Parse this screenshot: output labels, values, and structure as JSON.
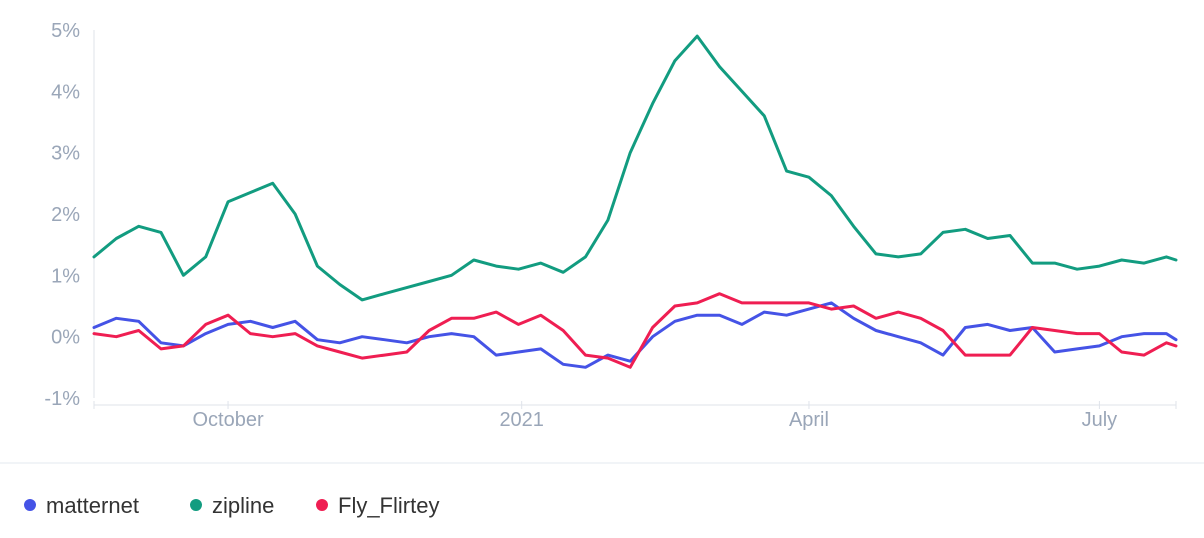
{
  "chart_data": {
    "type": "line",
    "title": "",
    "xlabel": "",
    "ylabel": "",
    "x_range": [
      "2020-08-20",
      "2021-07-25"
    ],
    "ylim": [
      -1,
      5
    ],
    "y_ticks": [
      5,
      4,
      3,
      2,
      1,
      0,
      -1
    ],
    "y_tick_labels": [
      "5%",
      "4%",
      "3%",
      "2%",
      "1%",
      "0%",
      "-1%"
    ],
    "x_ticks": [
      "2020-10-01",
      "2021-01-01",
      "2021-04-01",
      "2021-07-01"
    ],
    "x_tick_labels": [
      "October",
      "2021",
      "April",
      "July"
    ],
    "grid": false,
    "legend_position": "bottom-left",
    "x": [
      "2020-08-20",
      "2020-08-27",
      "2020-09-03",
      "2020-09-10",
      "2020-09-17",
      "2020-09-24",
      "2020-10-01",
      "2020-10-08",
      "2020-10-15",
      "2020-10-22",
      "2020-10-29",
      "2020-11-05",
      "2020-11-12",
      "2020-11-19",
      "2020-11-26",
      "2020-12-03",
      "2020-12-10",
      "2020-12-17",
      "2020-12-24",
      "2020-12-31",
      "2021-01-07",
      "2021-01-14",
      "2021-01-21",
      "2021-01-28",
      "2021-02-04",
      "2021-02-11",
      "2021-02-18",
      "2021-02-25",
      "2021-03-04",
      "2021-03-11",
      "2021-03-18",
      "2021-03-25",
      "2021-04-01",
      "2021-04-08",
      "2021-04-15",
      "2021-04-22",
      "2021-04-29",
      "2021-05-06",
      "2021-05-13",
      "2021-05-20",
      "2021-05-27",
      "2021-06-03",
      "2021-06-10",
      "2021-06-17",
      "2021-06-24",
      "2021-07-01",
      "2021-07-08",
      "2021-07-15",
      "2021-07-22",
      "2021-07-25"
    ],
    "series": [
      {
        "name": "matternet",
        "color": "#4553e6",
        "values": [
          0.15,
          0.3,
          0.25,
          -0.1,
          -0.15,
          0.05,
          0.2,
          0.25,
          0.15,
          0.25,
          -0.05,
          -0.1,
          0.0,
          -0.05,
          -0.1,
          0.0,
          0.05,
          0.0,
          -0.3,
          -0.25,
          -0.2,
          -0.45,
          -0.5,
          -0.3,
          -0.4,
          0.0,
          0.25,
          0.35,
          0.35,
          0.2,
          0.4,
          0.35,
          0.45,
          0.55,
          0.3,
          0.1,
          0.0,
          -0.1,
          -0.3,
          0.15,
          0.2,
          0.1,
          0.15,
          -0.25,
          -0.2,
          -0.15,
          0.0,
          0.05,
          0.05,
          -0.05
        ]
      },
      {
        "name": "zipline",
        "color": "#129c80",
        "values": [
          1.3,
          1.6,
          1.8,
          1.7,
          1.0,
          1.3,
          2.2,
          2.35,
          2.5,
          2.0,
          1.15,
          0.85,
          0.6,
          0.7,
          0.8,
          0.9,
          1.0,
          1.25,
          1.15,
          1.1,
          1.2,
          1.05,
          1.3,
          1.9,
          3.0,
          3.8,
          4.5,
          4.9,
          4.4,
          4.0,
          3.6,
          2.7,
          2.6,
          2.3,
          1.8,
          1.35,
          1.3,
          1.35,
          1.7,
          1.75,
          1.6,
          1.65,
          1.2,
          1.2,
          1.1,
          1.15,
          1.25,
          1.2,
          1.3,
          1.25
        ]
      },
      {
        "name": "Fly_Flirtey",
        "color": "#ef1e52",
        "values": [
          0.05,
          0.0,
          0.1,
          -0.2,
          -0.15,
          0.2,
          0.35,
          0.05,
          0.0,
          0.05,
          -0.15,
          -0.25,
          -0.35,
          -0.3,
          -0.25,
          0.1,
          0.3,
          0.3,
          0.4,
          0.2,
          0.35,
          0.1,
          -0.3,
          -0.35,
          -0.5,
          0.15,
          0.5,
          0.55,
          0.7,
          0.55,
          0.55,
          0.55,
          0.55,
          0.45,
          0.5,
          0.3,
          0.4,
          0.3,
          0.1,
          -0.3,
          -0.3,
          -0.3,
          0.15,
          0.1,
          0.05,
          0.05,
          -0.25,
          -0.3,
          -0.1,
          -0.15
        ]
      }
    ]
  }
}
